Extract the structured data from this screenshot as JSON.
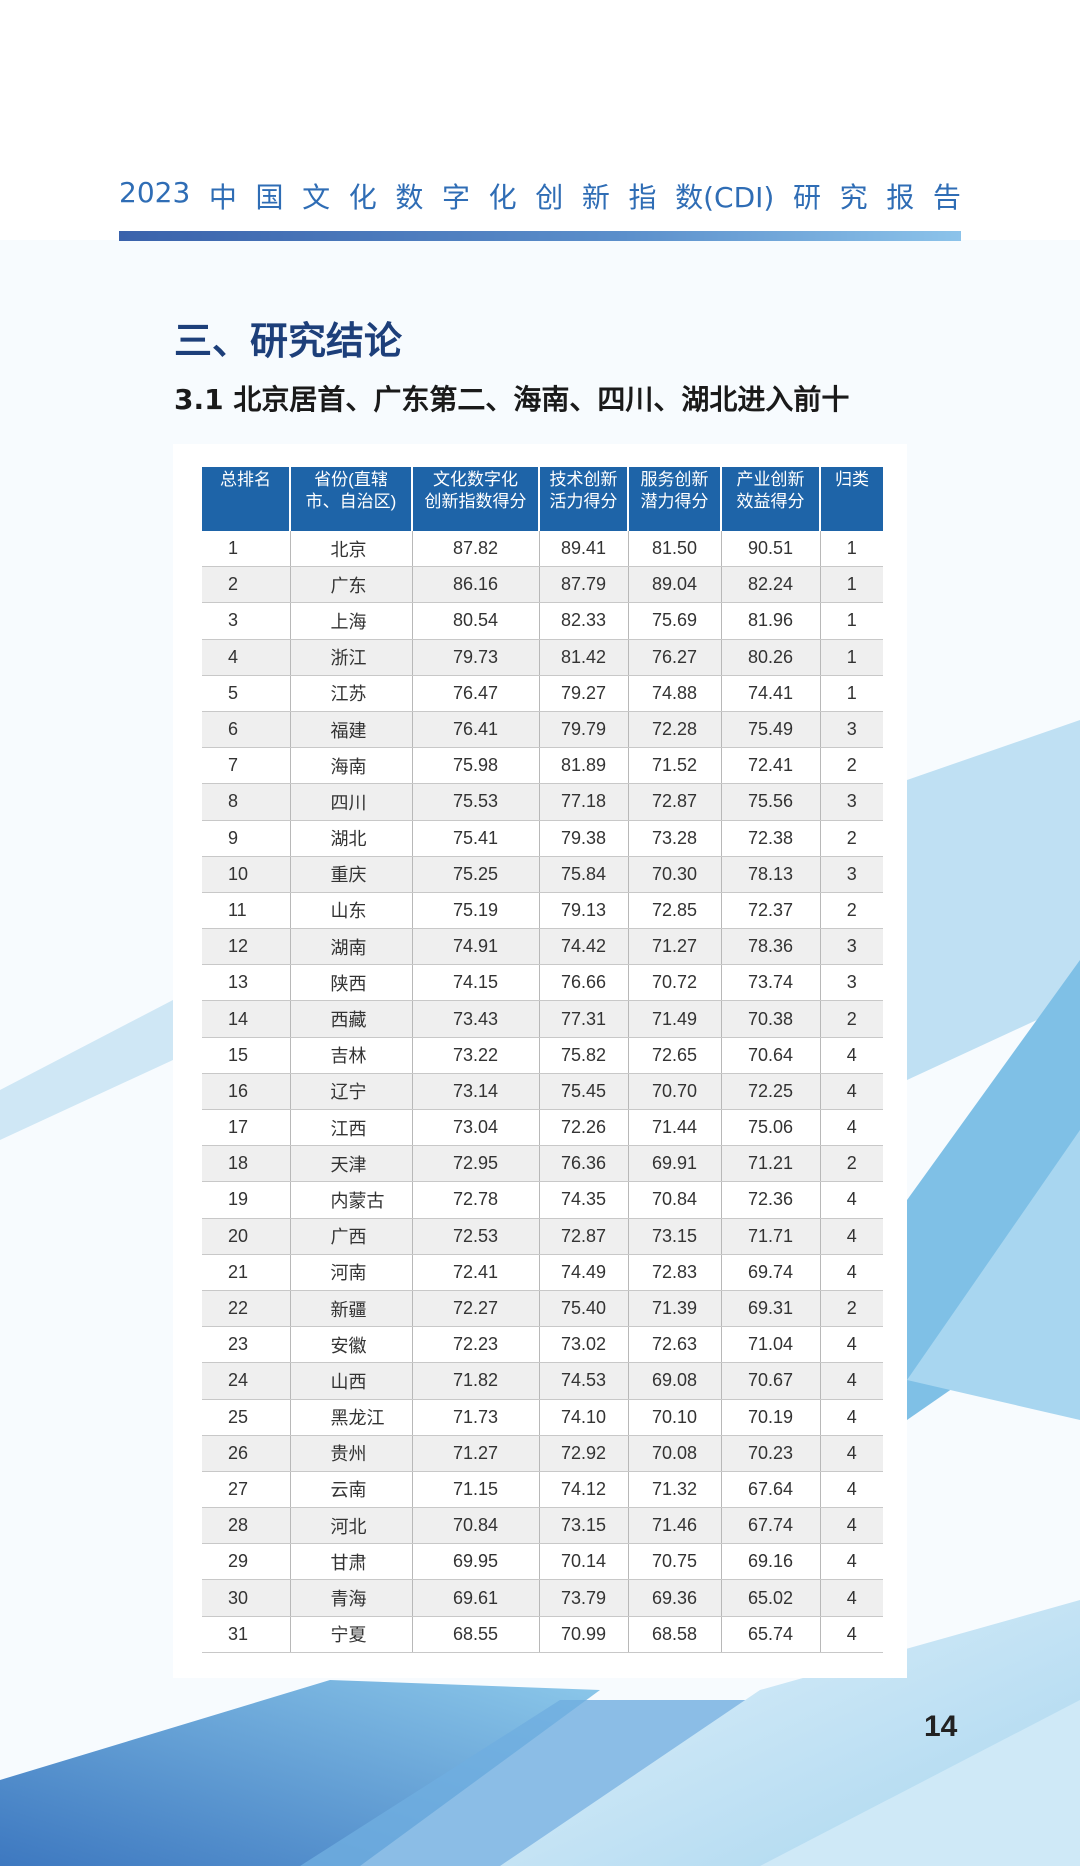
{
  "header": {
    "title_parts": [
      "2023",
      "中",
      "国",
      "文",
      "化",
      "数",
      "字",
      "化",
      "创",
      "新",
      "指",
      "数(CDI)",
      "研",
      "究",
      "报",
      "告"
    ],
    "accent_color": "#2f6db5"
  },
  "section": {
    "title": "三、研究结论",
    "subtitle": "3.1 北京居首、广东第二、海南、四川、湖北进入前十"
  },
  "table": {
    "header_color": "#1e64a8",
    "columns": [
      "总排名",
      "省份(直辖市、自治区)",
      "文化数字化创新指数得分",
      "技术创新活力得分",
      "服务创新潜力得分",
      "产业创新效益得分",
      "归类"
    ],
    "rows": [
      [
        "1",
        "北京",
        "87.82",
        "89.41",
        "81.50",
        "90.51",
        "1"
      ],
      [
        "2",
        "广东",
        "86.16",
        "87.79",
        "89.04",
        "82.24",
        "1"
      ],
      [
        "3",
        "上海",
        "80.54",
        "82.33",
        "75.69",
        "81.96",
        "1"
      ],
      [
        "4",
        "浙江",
        "79.73",
        "81.42",
        "76.27",
        "80.26",
        "1"
      ],
      [
        "5",
        "江苏",
        "76.47",
        "79.27",
        "74.88",
        "74.41",
        "1"
      ],
      [
        "6",
        "福建",
        "76.41",
        "79.79",
        "72.28",
        "75.49",
        "3"
      ],
      [
        "7",
        "海南",
        "75.98",
        "81.89",
        "71.52",
        "72.41",
        "2"
      ],
      [
        "8",
        "四川",
        "75.53",
        "77.18",
        "72.87",
        "75.56",
        "3"
      ],
      [
        "9",
        "湖北",
        "75.41",
        "79.38",
        "73.28",
        "72.38",
        "2"
      ],
      [
        "10",
        "重庆",
        "75.25",
        "75.84",
        "70.30",
        "78.13",
        "3"
      ],
      [
        "11",
        "山东",
        "75.19",
        "79.13",
        "72.85",
        "72.37",
        "2"
      ],
      [
        "12",
        "湖南",
        "74.91",
        "74.42",
        "71.27",
        "78.36",
        "3"
      ],
      [
        "13",
        "陕西",
        "74.15",
        "76.66",
        "70.72",
        "73.74",
        "3"
      ],
      [
        "14",
        "西藏",
        "73.43",
        "77.31",
        "71.49",
        "70.38",
        "2"
      ],
      [
        "15",
        "吉林",
        "73.22",
        "75.82",
        "72.65",
        "70.64",
        "4"
      ],
      [
        "16",
        "辽宁",
        "73.14",
        "75.45",
        "70.70",
        "72.25",
        "4"
      ],
      [
        "17",
        "江西",
        "73.04",
        "72.26",
        "71.44",
        "75.06",
        "4"
      ],
      [
        "18",
        "天津",
        "72.95",
        "76.36",
        "69.91",
        "71.21",
        "2"
      ],
      [
        "19",
        "内蒙古",
        "72.78",
        "74.35",
        "70.84",
        "72.36",
        "4"
      ],
      [
        "20",
        "广西",
        "72.53",
        "72.87",
        "73.15",
        "71.71",
        "4"
      ],
      [
        "21",
        "河南",
        "72.41",
        "74.49",
        "72.83",
        "69.74",
        "4"
      ],
      [
        "22",
        "新疆",
        "72.27",
        "75.40",
        "71.39",
        "69.31",
        "2"
      ],
      [
        "23",
        "安徽",
        "72.23",
        "73.02",
        "72.63",
        "71.04",
        "4"
      ],
      [
        "24",
        "山西",
        "71.82",
        "74.53",
        "69.08",
        "70.67",
        "4"
      ],
      [
        "25",
        "黑龙江",
        "71.73",
        "74.10",
        "70.10",
        "70.19",
        "4"
      ],
      [
        "26",
        "贵州",
        "71.27",
        "72.92",
        "70.08",
        "70.23",
        "4"
      ],
      [
        "27",
        "云南",
        "71.15",
        "74.12",
        "71.32",
        "67.64",
        "4"
      ],
      [
        "28",
        "河北",
        "70.84",
        "73.15",
        "71.46",
        "67.74",
        "4"
      ],
      [
        "29",
        "甘肃",
        "69.95",
        "70.14",
        "70.75",
        "69.16",
        "4"
      ],
      [
        "30",
        "青海",
        "69.61",
        "73.79",
        "69.36",
        "65.02",
        "4"
      ],
      [
        "31",
        "宁夏",
        "68.55",
        "70.99",
        "68.58",
        "65.74",
        "4"
      ]
    ]
  },
  "footer": {
    "page_number": "14"
  }
}
